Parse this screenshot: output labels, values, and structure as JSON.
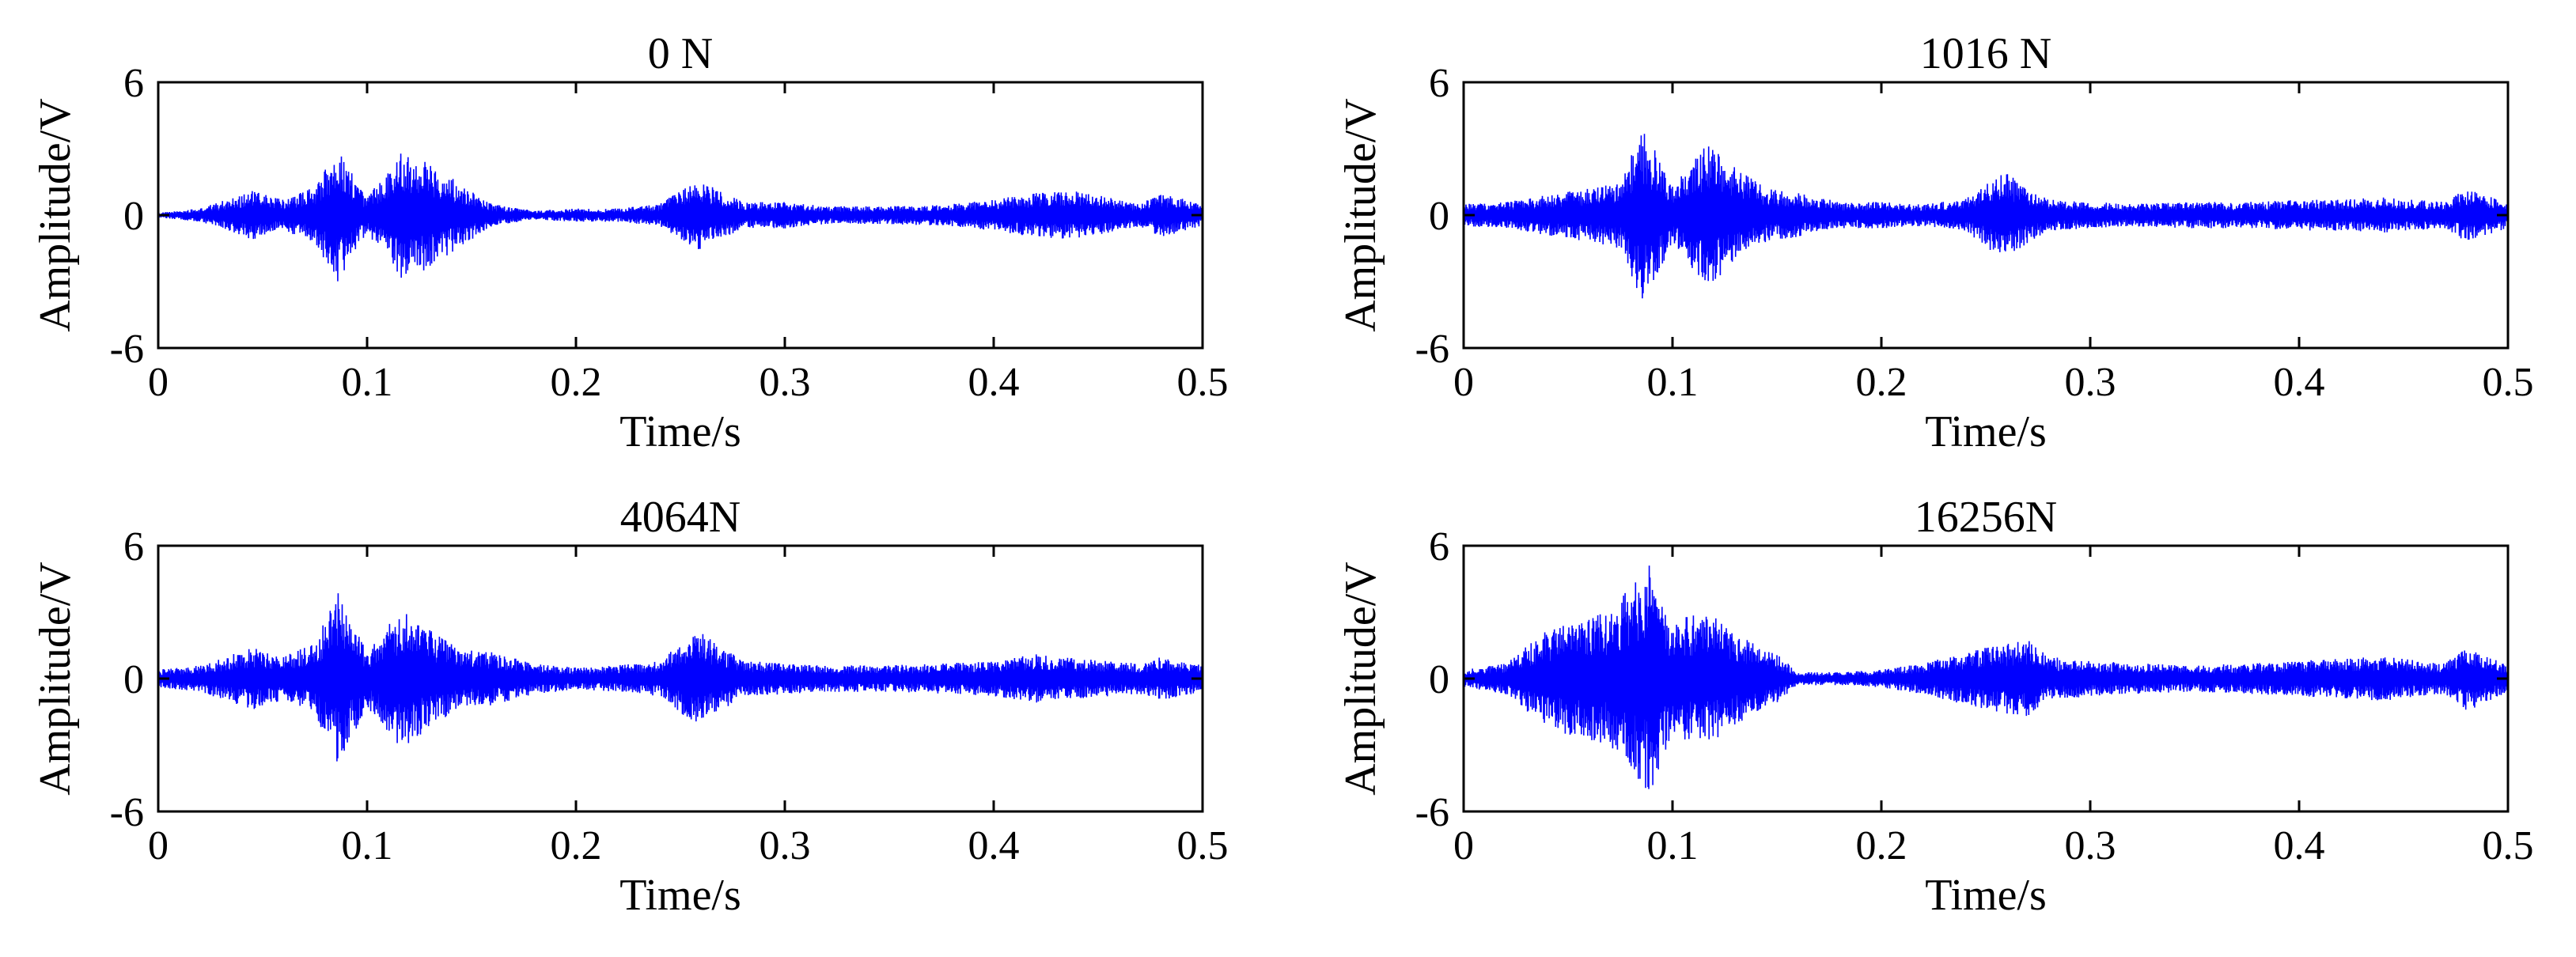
{
  "chart_data": [
    {
      "type": "line",
      "title": "0 N",
      "xlabel": "Time/s",
      "ylabel": "Amplitude/V",
      "xlim": [
        0,
        0.5
      ],
      "ylim": [
        -6,
        6
      ],
      "xticks": [
        "0",
        "0.1",
        "0.2",
        "0.3",
        "0.4",
        "0.5"
      ],
      "yticks": [
        "6",
        "0",
        "-6"
      ],
      "grid": false,
      "color": "#0000ff",
      "series": [
        {
          "x": [
            0,
            0.02,
            0.045,
            0.06,
            0.075,
            0.086,
            0.1,
            0.117,
            0.13,
            0.145,
            0.16,
            0.18,
            0.2,
            0.22,
            0.24,
            0.258,
            0.28,
            0.3,
            0.32,
            0.35,
            0.38,
            0.4,
            0.42,
            0.44,
            0.47,
            0.48,
            0.5
          ],
          "y": [
            0.1,
            0.3,
            1.1,
            0.7,
            1.3,
            3.0,
            0.8,
            3.0,
            2.4,
            1.4,
            0.5,
            0.2,
            0.3,
            0.3,
            0.5,
            1.6,
            0.6,
            0.6,
            0.4,
            0.4,
            0.5,
            0.7,
            1.0,
            1.1,
            0.5,
            1.0,
            0.5
          ]
        }
      ]
    },
    {
      "type": "line",
      "title": "1016 N",
      "xlabel": "Time/s",
      "ylabel": "Amplitude/V",
      "xlim": [
        0,
        0.5
      ],
      "ylim": [
        -6,
        6
      ],
      "xticks": [
        "0",
        "0.1",
        "0.2",
        "0.3",
        "0.4",
        "0.5"
      ],
      "yticks": [
        "6",
        "0",
        "-6"
      ],
      "grid": false,
      "color": "#0000ff",
      "series": [
        {
          "x": [
            0,
            0.02,
            0.045,
            0.06,
            0.075,
            0.086,
            0.1,
            0.117,
            0.13,
            0.145,
            0.16,
            0.18,
            0.2,
            0.22,
            0.24,
            0.258,
            0.28,
            0.3,
            0.32,
            0.35,
            0.38,
            0.4,
            0.42,
            0.44,
            0.47,
            0.48,
            0.5
          ],
          "y": [
            0.5,
            0.6,
            1.0,
            1.2,
            1.5,
            4.0,
            1.3,
            3.3,
            2.2,
            1.2,
            1.0,
            0.6,
            0.6,
            0.5,
            0.7,
            2.0,
            0.7,
            0.6,
            0.5,
            0.6,
            0.6,
            0.7,
            0.7,
            0.8,
            0.6,
            1.2,
            0.6
          ]
        }
      ]
    },
    {
      "type": "line",
      "title": "4064N",
      "xlabel": "Time/s",
      "ylabel": "Amplitude/V",
      "xlim": [
        0,
        0.5
      ],
      "ylim": [
        -6,
        6
      ],
      "xticks": [
        "0",
        "0.1",
        "0.2",
        "0.3",
        "0.4",
        "0.5"
      ],
      "yticks": [
        "6",
        "0",
        "-6"
      ],
      "grid": false,
      "color": "#0000ff",
      "series": [
        {
          "x": [
            0,
            0.02,
            0.045,
            0.06,
            0.075,
            0.086,
            0.1,
            0.117,
            0.13,
            0.145,
            0.16,
            0.18,
            0.2,
            0.22,
            0.24,
            0.258,
            0.28,
            0.3,
            0.32,
            0.35,
            0.38,
            0.4,
            0.42,
            0.44,
            0.47,
            0.48,
            0.5
          ],
          "y": [
            0.4,
            0.6,
            1.4,
            1.0,
            1.6,
            3.9,
            1.3,
            3.2,
            2.2,
            1.3,
            1.2,
            0.7,
            0.5,
            0.6,
            0.8,
            2.2,
            0.8,
            0.7,
            0.6,
            0.6,
            0.7,
            0.8,
            1.1,
            0.9,
            0.7,
            1.0,
            0.6
          ]
        }
      ]
    },
    {
      "type": "line",
      "title": "16256N",
      "xlabel": "Time/s",
      "ylabel": "Amplitude/V",
      "xlim": [
        0,
        0.5
      ],
      "ylim": [
        -6,
        6
      ],
      "xticks": [
        "0",
        "0.1",
        "0.2",
        "0.3",
        "0.4",
        "0.5"
      ],
      "yticks": [
        "6",
        "0",
        "-6"
      ],
      "grid": false,
      "color": "#0000ff",
      "series": [
        {
          "x": [
            0,
            0.02,
            0.04,
            0.055,
            0.07,
            0.089,
            0.1,
            0.11,
            0.12,
            0.135,
            0.15,
            0.16,
            0.18,
            0.2,
            0.22,
            0.24,
            0.26,
            0.27,
            0.28,
            0.3,
            0.32,
            0.35,
            0.38,
            0.4,
            0.42,
            0.44,
            0.47,
            0.48,
            0.5
          ],
          "y": [
            0.4,
            0.7,
            2.2,
            2.7,
            3.0,
            5.3,
            2.4,
            3.0,
            2.8,
            1.8,
            1.1,
            0.3,
            0.3,
            0.4,
            0.7,
            1.2,
            1.6,
            1.8,
            1.0,
            0.8,
            0.7,
            0.6,
            0.7,
            0.8,
            0.9,
            1.0,
            0.7,
            1.5,
            0.6
          ]
        }
      ]
    }
  ]
}
